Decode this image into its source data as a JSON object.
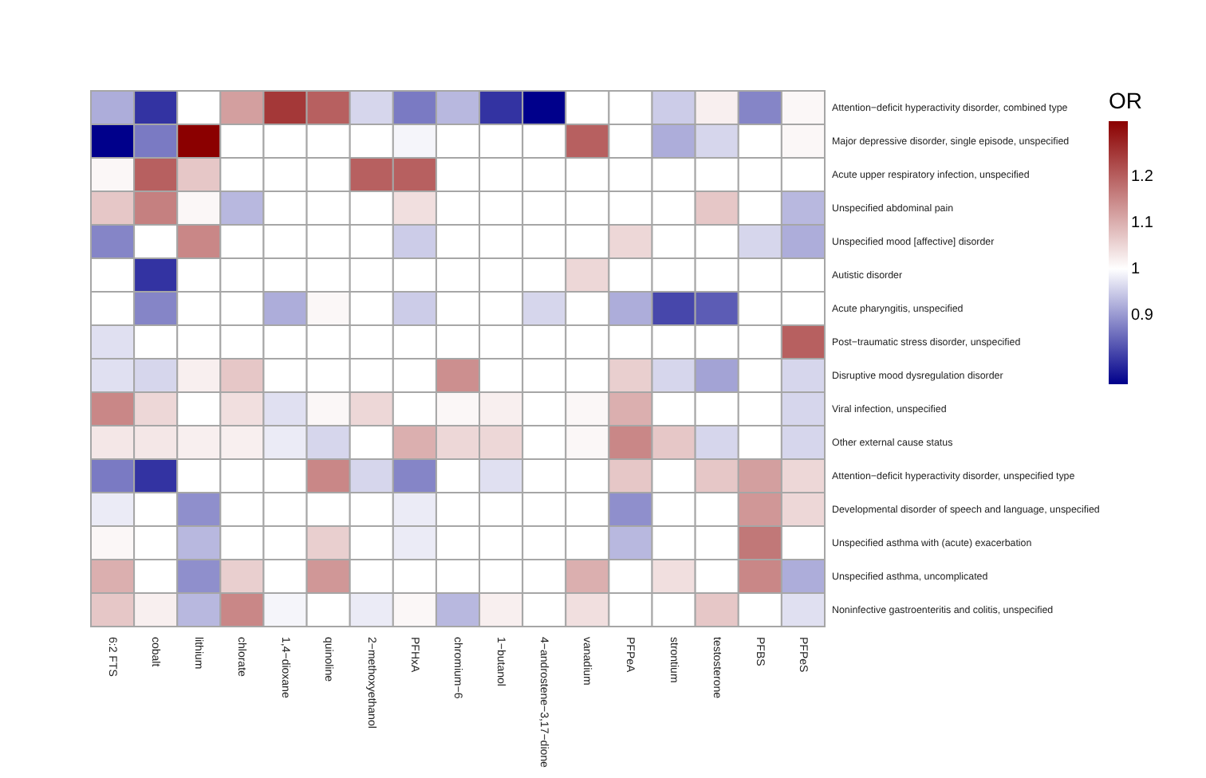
{
  "chart_data": {
    "type": "heatmap",
    "clabel": "OR",
    "clim": [
      0.75,
      1.32
    ],
    "cticks": [
      0.9,
      1,
      1.1,
      1.2
    ],
    "categories": [
      "6:2 FTS",
      "cobalt",
      "lithium",
      "chlorate",
      "1,4−dioxane",
      "quinoline",
      "2−methoxyethanol",
      "PFHxA",
      "chromium−6",
      "1−butanol",
      "4−androstene−3,17−dione",
      "vanadium",
      "PFPeA",
      "strontium",
      "testosterone",
      "PFBS",
      "PFPeS"
    ],
    "y_categories": [
      "Attention−deficit hyperactivity disorder, combined type",
      "Major depressive disorder, single episode, unspecified",
      "Acute upper respiratory infection, unspecified",
      "Unspecified abdominal pain",
      "Unspecified mood [affective] disorder",
      "Autistic disorder",
      "Acute pharyngitis, unspecified",
      "Post−traumatic stress disorder, unspecified",
      "Disruptive mood dysregulation disorder",
      "Viral infection, unspecified",
      "Other external cause status",
      "Attention−deficit hyperactivity disorder, unspecified type",
      "Developmental disorder of speech and language, unspecified",
      "Unspecified asthma with (acute) exacerbation",
      "Unspecified asthma, uncomplicated",
      "Noninfective gastroenteritis and colitis, unspecified"
    ],
    "cells": [
      [
        0.92,
        0.8,
        1,
        1.12,
        1.25,
        1.2,
        0.96,
        0.87,
        0.93,
        0.8,
        0.75,
        1,
        1,
        0.95,
        1.02,
        0.88,
        1.01
      ],
      [
        0.75,
        0.87,
        1.32,
        1,
        1,
        1,
        1,
        0.99,
        1,
        1,
        1,
        1.2,
        1,
        0.92,
        0.96,
        1,
        1.01
      ],
      [
        1.01,
        1.2,
        1.07,
        1,
        1,
        1,
        1.2,
        1.2,
        1,
        1,
        1,
        1,
        1,
        1,
        1,
        1,
        1
      ],
      [
        1.07,
        1.16,
        1.01,
        0.93,
        1,
        1,
        1,
        1.04,
        1,
        1,
        1,
        1,
        1,
        1,
        1.07,
        1,
        0.93
      ],
      [
        0.88,
        1,
        1.15,
        1,
        1,
        1,
        1,
        0.95,
        1,
        1,
        1,
        1,
        1.05,
        1,
        1,
        0.96,
        0.92
      ],
      [
        1,
        0.8,
        1,
        1,
        1,
        1,
        1,
        1,
        1,
        1,
        1,
        1.05,
        1,
        1,
        1,
        1,
        1
      ],
      [
        1,
        0.88,
        1,
        1,
        0.92,
        1.01,
        1,
        0.95,
        1,
        1,
        0.96,
        1,
        0.92,
        0.82,
        0.84,
        1,
        1
      ],
      [
        0.97,
        1,
        1,
        1,
        1,
        1,
        1,
        1,
        1,
        1,
        1,
        1,
        1,
        1,
        1,
        1,
        1.2
      ],
      [
        0.97,
        0.96,
        1.02,
        1.07,
        1,
        1,
        1,
        1,
        1.14,
        1,
        1,
        1,
        1.06,
        0.96,
        0.91,
        1,
        0.96
      ],
      [
        1.15,
        1.05,
        1,
        1.04,
        0.97,
        1.01,
        1.05,
        1,
        1.01,
        1.02,
        1,
        1.01,
        1.1,
        1,
        1,
        1,
        0.96
      ],
      [
        1.03,
        1.03,
        1.02,
        1.02,
        0.98,
        0.96,
        1,
        1.1,
        1.05,
        1.05,
        1,
        1.01,
        1.15,
        1.07,
        0.96,
        1,
        0.96
      ],
      [
        0.87,
        0.8,
        1,
        1,
        1,
        1.15,
        0.96,
        0.88,
        1,
        0.97,
        1,
        1,
        1.07,
        1,
        1.07,
        1.12,
        1.05
      ],
      [
        0.98,
        1,
        0.89,
        1,
        1,
        1,
        1,
        0.98,
        1,
        1,
        1,
        1,
        0.89,
        1,
        1,
        1.13,
        1.05
      ],
      [
        1.01,
        1,
        0.93,
        1,
        1,
        1.06,
        1,
        0.98,
        1,
        1,
        1,
        1,
        0.93,
        1,
        1,
        1.17,
        1
      ],
      [
        1.1,
        1,
        0.89,
        1.06,
        1,
        1.13,
        1,
        1,
        1,
        1,
        1,
        1.1,
        1,
        1.04,
        1,
        1.15,
        0.92
      ],
      [
        1.07,
        1.02,
        0.93,
        1.15,
        0.99,
        1,
        0.98,
        1.01,
        0.93,
        1.02,
        1,
        1.04,
        1,
        1,
        1.07,
        1,
        0.97
      ]
    ]
  }
}
